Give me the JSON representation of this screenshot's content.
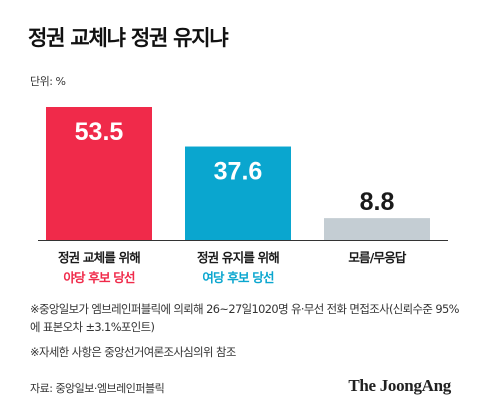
{
  "title": "정권 교체냐 정권 유지냐",
  "unit": "단위: %",
  "chart_data": {
    "type": "bar",
    "categories": [
      "정권 교체를 위해",
      "정권 유지를 위해",
      "모름/무응답"
    ],
    "subcategories": [
      "야당 후보 당선",
      "여당 후보 당선",
      ""
    ],
    "values": [
      53.5,
      37.6,
      8.8
    ],
    "value_labels": [
      "53.5",
      "37.6",
      "8.8"
    ],
    "colors": [
      "#f02a4a",
      "#0aa6cf",
      "#c4cdd3"
    ],
    "sub_colors": [
      "#f02a4a",
      "#0aa6cf",
      "#1a1a1a"
    ],
    "value_colors": [
      "#ffffff",
      "#ffffff",
      "#1a1a1a"
    ],
    "ylim": [
      0,
      53.5
    ]
  },
  "notes": [
    "※중앙일보가 엠브레인퍼블릭에 의뢰해 26~27일1020명 유·무선 전화 면접조사(신뢰수준 95%에 표본오차 ±3.1%포인트)",
    "※자세한 사항은 중앙선거여론조사심의위 참조"
  ],
  "source": "자료: 중앙일보·엠브레인퍼블릭",
  "brand": "The JoongAng"
}
